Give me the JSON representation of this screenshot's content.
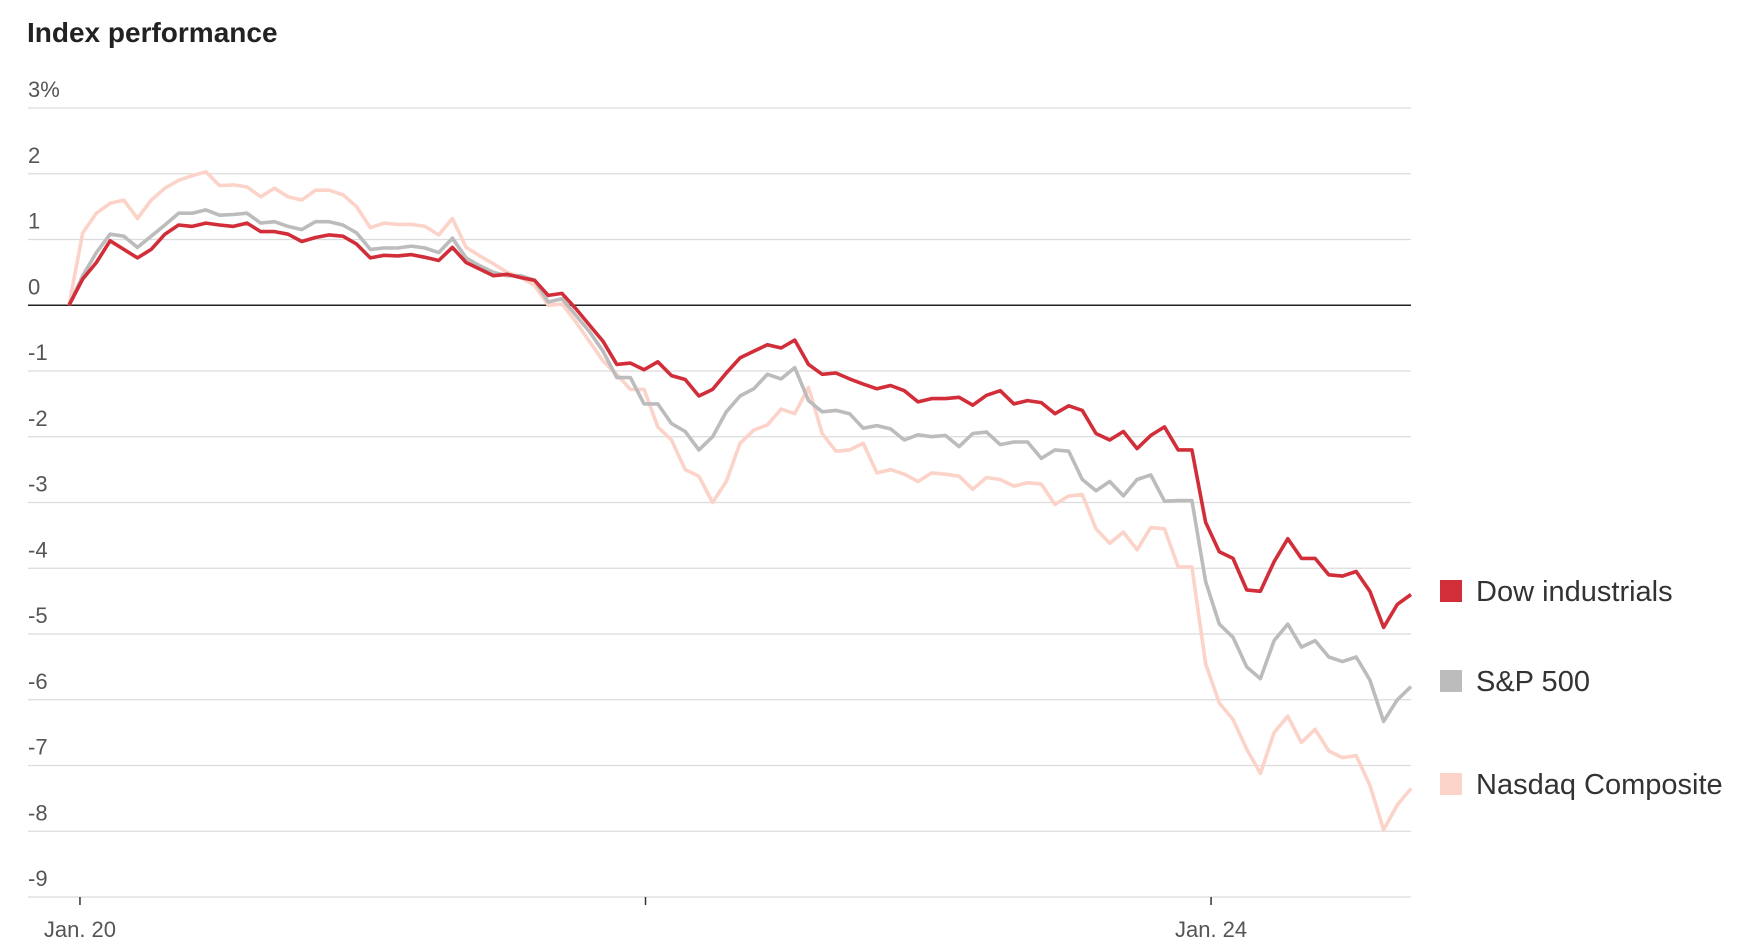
{
  "chart_data": {
    "type": "line",
    "title": "Index performance",
    "x": [
      0,
      1,
      2,
      3,
      4,
      5,
      6,
      7,
      8,
      9,
      10,
      11,
      12,
      13,
      14,
      15,
      16,
      17,
      18,
      19,
      20,
      21,
      22,
      23,
      24,
      25,
      26,
      27,
      28,
      29,
      30,
      31,
      32,
      33,
      34,
      35,
      36,
      37,
      38,
      39,
      40,
      41,
      42,
      43,
      44,
      45,
      46,
      47,
      48,
      49,
      50,
      51,
      52,
      53,
      54,
      55,
      56,
      57,
      58,
      59,
      60,
      61,
      62,
      63,
      64,
      65,
      66,
      67,
      68,
      69,
      70,
      71,
      72,
      73,
      74,
      75,
      76,
      77,
      78,
      79,
      80,
      81,
      82,
      83,
      84,
      85,
      86,
      87,
      88,
      89,
      90,
      91,
      92,
      93,
      94,
      95,
      96,
      97,
      98
    ],
    "xlim": [
      0,
      98
    ],
    "xticks": [
      {
        "value": 0.8,
        "label": "Jan. 20"
      },
      {
        "value": 42.1,
        "label": null
      },
      {
        "value": 83.4,
        "label": "Jan. 24"
      }
    ],
    "ylim": [
      -9,
      3
    ],
    "yticks": [
      {
        "value": 3,
        "label": "3%"
      },
      2,
      1,
      0,
      -1,
      -2,
      -3,
      -4,
      -5,
      -6,
      -7,
      -8,
      -9
    ],
    "grid": true,
    "legend": "right",
    "series": [
      {
        "name": "Dow industrials",
        "color": "#d12e3a",
        "values": [
          0,
          0.4,
          0.65,
          0.98,
          0.85,
          0.72,
          0.85,
          1.08,
          1.22,
          1.2,
          1.25,
          1.22,
          1.2,
          1.25,
          1.12,
          1.12,
          1.08,
          0.97,
          1.03,
          1.07,
          1.05,
          0.93,
          0.72,
          0.76,
          0.75,
          0.77,
          0.73,
          0.68,
          0.88,
          0.65,
          0.55,
          0.45,
          0.47,
          0.42,
          0.38,
          0.15,
          0.18,
          -0.05,
          -0.3,
          -0.55,
          -0.9,
          -0.88,
          -0.98,
          -0.86,
          -1.07,
          -1.13,
          -1.38,
          -1.28,
          -1.03,
          -0.8,
          -0.7,
          -0.6,
          -0.65,
          -0.53,
          -0.9,
          -1.05,
          -1.03,
          -1.12,
          -1.2,
          -1.27,
          -1.22,
          -1.3,
          -1.47,
          -1.42,
          -1.42,
          -1.4,
          -1.52,
          -1.37,
          -1.3,
          -1.5,
          -1.45,
          -1.48,
          -1.65,
          -1.53,
          -1.6,
          -1.95,
          -2.05,
          -1.92,
          -2.18,
          -1.98,
          -1.85,
          -2.2,
          -2.2,
          -3.3,
          -3.75,
          -3.85,
          -4.33,
          -4.35,
          -3.9,
          -3.55,
          -3.85,
          -3.85,
          -4.1,
          -4.12,
          -4.05,
          -4.35,
          -4.9,
          -4.55,
          -4.4
        ]
      },
      {
        "name": "S&P 500",
        "color": "#bcbcbc",
        "values": [
          0,
          0.45,
          0.8,
          1.08,
          1.05,
          0.88,
          1.05,
          1.22,
          1.4,
          1.4,
          1.45,
          1.37,
          1.38,
          1.4,
          1.25,
          1.27,
          1.2,
          1.15,
          1.27,
          1.27,
          1.22,
          1.1,
          0.85,
          0.87,
          0.87,
          0.9,
          0.87,
          0.8,
          1.02,
          0.72,
          0.6,
          0.5,
          0.45,
          0.45,
          0.38,
          0.05,
          0.1,
          -0.15,
          -0.4,
          -0.7,
          -1.1,
          -1.1,
          -1.5,
          -1.5,
          -1.8,
          -1.92,
          -2.2,
          -2.0,
          -1.62,
          -1.38,
          -1.27,
          -1.05,
          -1.12,
          -0.95,
          -1.45,
          -1.62,
          -1.6,
          -1.65,
          -1.87,
          -1.83,
          -1.88,
          -2.05,
          -1.97,
          -2.0,
          -1.98,
          -2.15,
          -1.95,
          -1.93,
          -2.12,
          -2.08,
          -2.08,
          -2.33,
          -2.2,
          -2.22,
          -2.65,
          -2.82,
          -2.68,
          -2.9,
          -2.65,
          -2.58,
          -2.98,
          -2.97,
          -2.97,
          -4.2,
          -4.85,
          -5.05,
          -5.5,
          -5.68,
          -5.1,
          -4.85,
          -5.2,
          -5.1,
          -5.35,
          -5.42,
          -5.35,
          -5.7,
          -6.33,
          -6.0,
          -5.8
        ]
      },
      {
        "name": "Nasdaq Composite",
        "color": "#fcd3c8",
        "values": [
          0,
          1.1,
          1.4,
          1.55,
          1.6,
          1.32,
          1.6,
          1.78,
          1.9,
          1.97,
          2.03,
          1.82,
          1.83,
          1.8,
          1.65,
          1.78,
          1.65,
          1.6,
          1.75,
          1.75,
          1.68,
          1.5,
          1.18,
          1.25,
          1.23,
          1.23,
          1.2,
          1.07,
          1.32,
          0.88,
          0.75,
          0.63,
          0.5,
          0.42,
          0.3,
          0.0,
          0.02,
          -0.25,
          -0.55,
          -0.85,
          -1.05,
          -1.28,
          -1.28,
          -1.85,
          -2.05,
          -2.5,
          -2.6,
          -3.0,
          -2.68,
          -2.1,
          -1.9,
          -1.82,
          -1.58,
          -1.65,
          -1.25,
          -1.95,
          -2.22,
          -2.2,
          -2.1,
          -2.55,
          -2.5,
          -2.57,
          -2.68,
          -2.55,
          -2.57,
          -2.6,
          -2.8,
          -2.62,
          -2.65,
          -2.75,
          -2.7,
          -2.72,
          -3.03,
          -2.9,
          -2.88,
          -3.4,
          -3.62,
          -3.45,
          -3.72,
          -3.38,
          -3.4,
          -3.98,
          -3.98,
          -5.45,
          -6.05,
          -6.3,
          -6.75,
          -7.12,
          -6.5,
          -6.25,
          -6.65,
          -6.45,
          -6.78,
          -6.88,
          -6.85,
          -7.3,
          -7.98,
          -7.6,
          -7.35
        ]
      }
    ]
  }
}
